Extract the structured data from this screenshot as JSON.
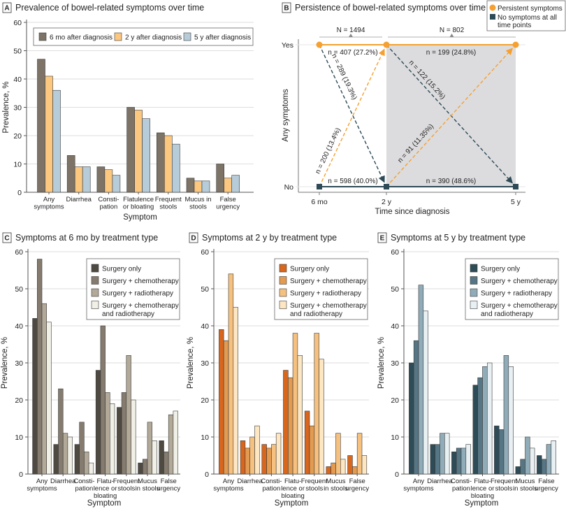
{
  "chart_data": [
    {
      "panel": "A",
      "type": "bar",
      "title": "Prevalence of bowel-related symptoms over time",
      "xlabel": "Symptom",
      "ylabel": "Prevalence, %",
      "ylim": [
        0,
        60
      ],
      "yticks": [
        "0",
        "10",
        "20",
        "30",
        "40",
        "50",
        "60"
      ],
      "grid": true,
      "legend_position": "top",
      "categories": [
        [
          "Any",
          "symptoms"
        ],
        [
          "Diarrhea"
        ],
        [
          "Consti-",
          "pation"
        ],
        [
          "Flatulence",
          "or bloating"
        ],
        [
          "Frequent",
          "stools"
        ],
        [
          "Mucus in",
          "stools"
        ],
        [
          "False",
          "urgency"
        ]
      ],
      "series": [
        {
          "name": "6 mo after diagnosis",
          "color": "#7d7366",
          "values": [
            47,
            13,
            9,
            30,
            21,
            5,
            10
          ]
        },
        {
          "name": "2 y after diagnosis",
          "color": "#fcc77e",
          "values": [
            41,
            9,
            8,
            29,
            20,
            4,
            5
          ]
        },
        {
          "name": "5 y after diagnosis",
          "color": "#b6ccd8",
          "values": [
            36,
            9,
            6,
            26,
            17,
            4,
            6
          ]
        }
      ]
    },
    {
      "panel": "C",
      "type": "bar",
      "title": "Symptoms at 6 mo by treatment type",
      "xlabel": "Symptom",
      "ylabel": "Prevalence, %",
      "ylim": [
        0,
        60
      ],
      "yticks": [
        "0",
        "10",
        "20",
        "30",
        "40",
        "50",
        "60"
      ],
      "grid": true,
      "legend_position": "top-right",
      "categories": [
        [
          "Any",
          "symptoms"
        ],
        [
          "Diarrhea"
        ],
        [
          "Consti-",
          "pation"
        ],
        [
          "Flatu-",
          "lence or",
          "bloating"
        ],
        [
          "Frequent",
          "stools"
        ],
        [
          "Mucus",
          "in stools"
        ],
        [
          "False",
          "urgency"
        ]
      ],
      "series": [
        {
          "name": "Surgery only",
          "color": "#4e4941",
          "values": [
            42,
            8,
            8,
            28,
            18,
            3,
            9
          ]
        },
        {
          "name": "Surgery + chemotherapy",
          "color": "#857c6f",
          "values": [
            58,
            23,
            14,
            40,
            22,
            4,
            6
          ]
        },
        {
          "name": "Surgery + radiotherapy",
          "color": "#b2a998",
          "values": [
            46,
            11,
            6,
            22,
            32,
            14,
            16
          ]
        },
        {
          "name": [
            "Surgery + chemotherapy",
            "and radiotherapy"
          ],
          "color": "#f1f0e7",
          "values": [
            41,
            10,
            3,
            19,
            20,
            9,
            17
          ]
        }
      ]
    },
    {
      "panel": "D",
      "type": "bar",
      "title": "Symptoms at 2 y by treatment type",
      "xlabel": "Symptom",
      "ylabel": "Prevalence, %",
      "ylim": [
        0,
        60
      ],
      "yticks": [
        "0",
        "10",
        "20",
        "30",
        "40",
        "50",
        "60"
      ],
      "grid": true,
      "legend_position": "top-right",
      "categories": [
        [
          "Any",
          "symptoms"
        ],
        [
          "Diarrhea"
        ],
        [
          "Consti-",
          "pation"
        ],
        [
          "Flatu-",
          "lence or",
          "bloating"
        ],
        [
          "Frequent",
          "stools"
        ],
        [
          "Mucus",
          "in stools"
        ],
        [
          "False",
          "urgency"
        ]
      ],
      "series": [
        {
          "name": "Surgery only",
          "color": "#d8661d",
          "values": [
            39,
            9,
            8,
            28,
            17,
            2,
            5
          ]
        },
        {
          "name": "Surgery + chemotherapy",
          "color": "#e39b52",
          "values": [
            36,
            7,
            7,
            26,
            13,
            3,
            2
          ]
        },
        {
          "name": "Surgery + radiotherapy",
          "color": "#f6c17f",
          "values": [
            54,
            10,
            8,
            38,
            38,
            11,
            11
          ]
        },
        {
          "name": [
            "Surgery + chemotherapy",
            "and radiotherapy"
          ],
          "color": "#fde6c2",
          "values": [
            45,
            13,
            11,
            32,
            31,
            4,
            5
          ]
        }
      ]
    },
    {
      "panel": "E",
      "type": "bar",
      "title": "Symptoms at 5 y by treatment type",
      "xlabel": "Symptom",
      "ylabel": "Prevalence, %",
      "ylim": [
        0,
        60
      ],
      "yticks": [
        "0",
        "10",
        "20",
        "30",
        "40",
        "50",
        "60"
      ],
      "grid": true,
      "legend_position": "top-right",
      "categories": [
        [
          "Any",
          "symptoms"
        ],
        [
          "Diarrhea"
        ],
        [
          "Consti-",
          "pation"
        ],
        [
          "Flatu-",
          "lence or",
          "bloating"
        ],
        [
          "Frequent",
          "stools"
        ],
        [
          "Mucus",
          "in stools"
        ],
        [
          "False",
          "urgency"
        ]
      ],
      "series": [
        {
          "name": "Surgery only",
          "color": "#2e4b58",
          "values": [
            30,
            8,
            6,
            24,
            13,
            2,
            5
          ]
        },
        {
          "name": "Surgery + chemotherapy",
          "color": "#567685",
          "values": [
            36,
            8,
            7,
            26,
            12,
            4,
            4
          ]
        },
        {
          "name": "Surgery + radiotherapy",
          "color": "#90acb9",
          "values": [
            51,
            11,
            7,
            29,
            32,
            10,
            8
          ]
        },
        {
          "name": [
            "Surgery + chemotherapy",
            "and radiotherapy"
          ],
          "color": "#e9f0f3",
          "values": [
            44,
            11,
            8,
            30,
            29,
            7,
            9
          ]
        }
      ]
    },
    {
      "panel": "B",
      "type": "flow",
      "title": "Persistence of bowel-related symptoms over time",
      "xlabel": "Time since diagnosis",
      "ylabel": "Any symptoms",
      "xticks": [
        "6 mo",
        "2 y",
        "5 y"
      ],
      "yticks": [
        "Yes",
        "No"
      ],
      "legend": [
        {
          "name": "Persistent symptoms",
          "marker": "circle",
          "color": "#f5a031"
        },
        {
          "name": [
            "No symptoms at all",
            "time points"
          ],
          "marker": "square",
          "color": "#2d4a57"
        }
      ],
      "cohorts": [
        {
          "label": "N = 1494",
          "from": "6 mo",
          "to": "2 y"
        },
        {
          "label": "N = 802",
          "from": "2 y",
          "to": "5 y"
        }
      ],
      "transitions": [
        {
          "from": [
            "6 mo",
            "Yes"
          ],
          "to": [
            "2 y",
            "Yes"
          ],
          "label": "n = 407 (27.2%)",
          "style": "solid",
          "color": "#f5a031"
        },
        {
          "from": [
            "6 mo",
            "No"
          ],
          "to": [
            "2 y",
            "No"
          ],
          "label": "n = 598 (40.0%)",
          "style": "solid",
          "color": "#2d4a57"
        },
        {
          "from": [
            "6 mo",
            "Yes"
          ],
          "to": [
            "2 y",
            "No"
          ],
          "label": "n = 289 (19.3%)",
          "style": "dashed",
          "color": "#2d4a57"
        },
        {
          "from": [
            "6 mo",
            "No"
          ],
          "to": [
            "2 y",
            "Yes"
          ],
          "label": "n = 200 (13.4%)",
          "style": "dashed",
          "color": "#f5a031"
        },
        {
          "from": [
            "2 y",
            "Yes"
          ],
          "to": [
            "5 y",
            "Yes"
          ],
          "label": "n = 199 (24.8%)",
          "style": "solid",
          "color": "#f5a031"
        },
        {
          "from": [
            "2 y",
            "No"
          ],
          "to": [
            "5 y",
            "No"
          ],
          "label": "n = 390 (48.6%)",
          "style": "solid",
          "color": "#2d4a57"
        },
        {
          "from": [
            "2 y",
            "Yes"
          ],
          "to": [
            "5 y",
            "No"
          ],
          "label": "n = 122 (15.2%)",
          "style": "dashed",
          "color": "#2d4a57"
        },
        {
          "from": [
            "2 y",
            "No"
          ],
          "to": [
            "5 y",
            "Yes"
          ],
          "label": "n = 91 (11.35%)",
          "style": "dashed",
          "color": "#f5a031"
        }
      ],
      "shaded_interval": [
        "2 y",
        "5 y"
      ]
    }
  ]
}
